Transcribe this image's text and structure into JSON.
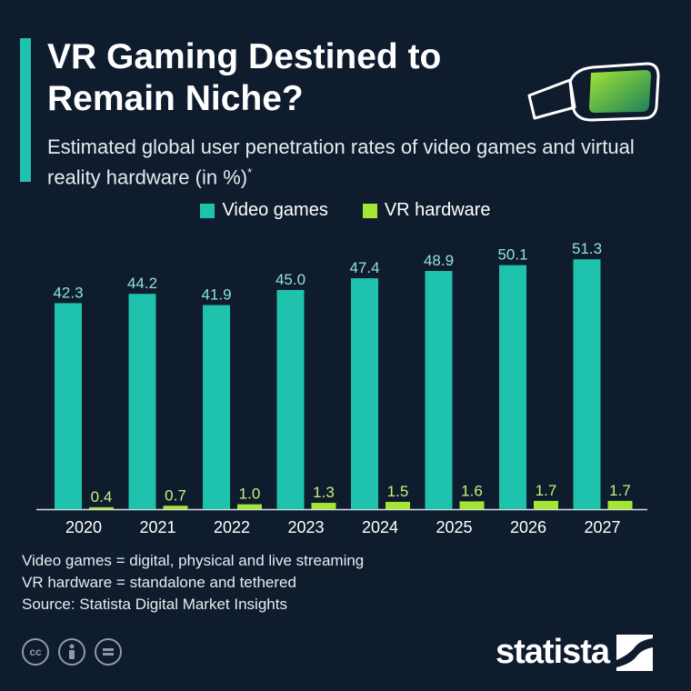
{
  "header": {
    "title": "VR Gaming Destined to Remain Niche?",
    "subtitle": "Estimated global user penetration rates of video games and virtual reality hardware (in %)",
    "subtitle_mark": "*"
  },
  "colors": {
    "background": "#0f1c2e",
    "accent": "#1fc3ad",
    "video_games": "#1fc3ad",
    "vr_hardware": "#a3e635",
    "label_video": "#8ee3d6",
    "label_vr": "#c5f27a"
  },
  "chart_data": {
    "type": "bar",
    "categories": [
      "2020",
      "2021",
      "2022",
      "2023",
      "2024",
      "2025",
      "2026",
      "2027"
    ],
    "series": [
      {
        "name": "Video games",
        "values": [
          42.3,
          44.2,
          41.9,
          45.0,
          47.4,
          48.9,
          50.1,
          51.3
        ],
        "labels": [
          "42.3",
          "44.2",
          "41.9",
          "45.0",
          "47.4",
          "48.9",
          "50.1",
          "51.3"
        ]
      },
      {
        "name": "VR hardware",
        "values": [
          0.4,
          0.7,
          1.0,
          1.3,
          1.5,
          1.6,
          1.7,
          1.7
        ],
        "labels": [
          "0.4",
          "0.7",
          "1.0",
          "1.3",
          "1.5",
          "1.6",
          "1.7",
          "1.7"
        ]
      }
    ],
    "ylim": [
      0,
      56
    ],
    "grid": false,
    "legend": "top-center"
  },
  "footnotes": {
    "line1": "Video games = digital, physical and live streaming",
    "line2": "VR hardware = standalone and tethered",
    "source": "Source: Statista Digital Market Insights"
  },
  "brand": {
    "name": "statista"
  },
  "icons": [
    "vr-headset-icon",
    "cc-icon",
    "attribution-icon",
    "no-derivatives-icon",
    "statista-logo-icon"
  ]
}
